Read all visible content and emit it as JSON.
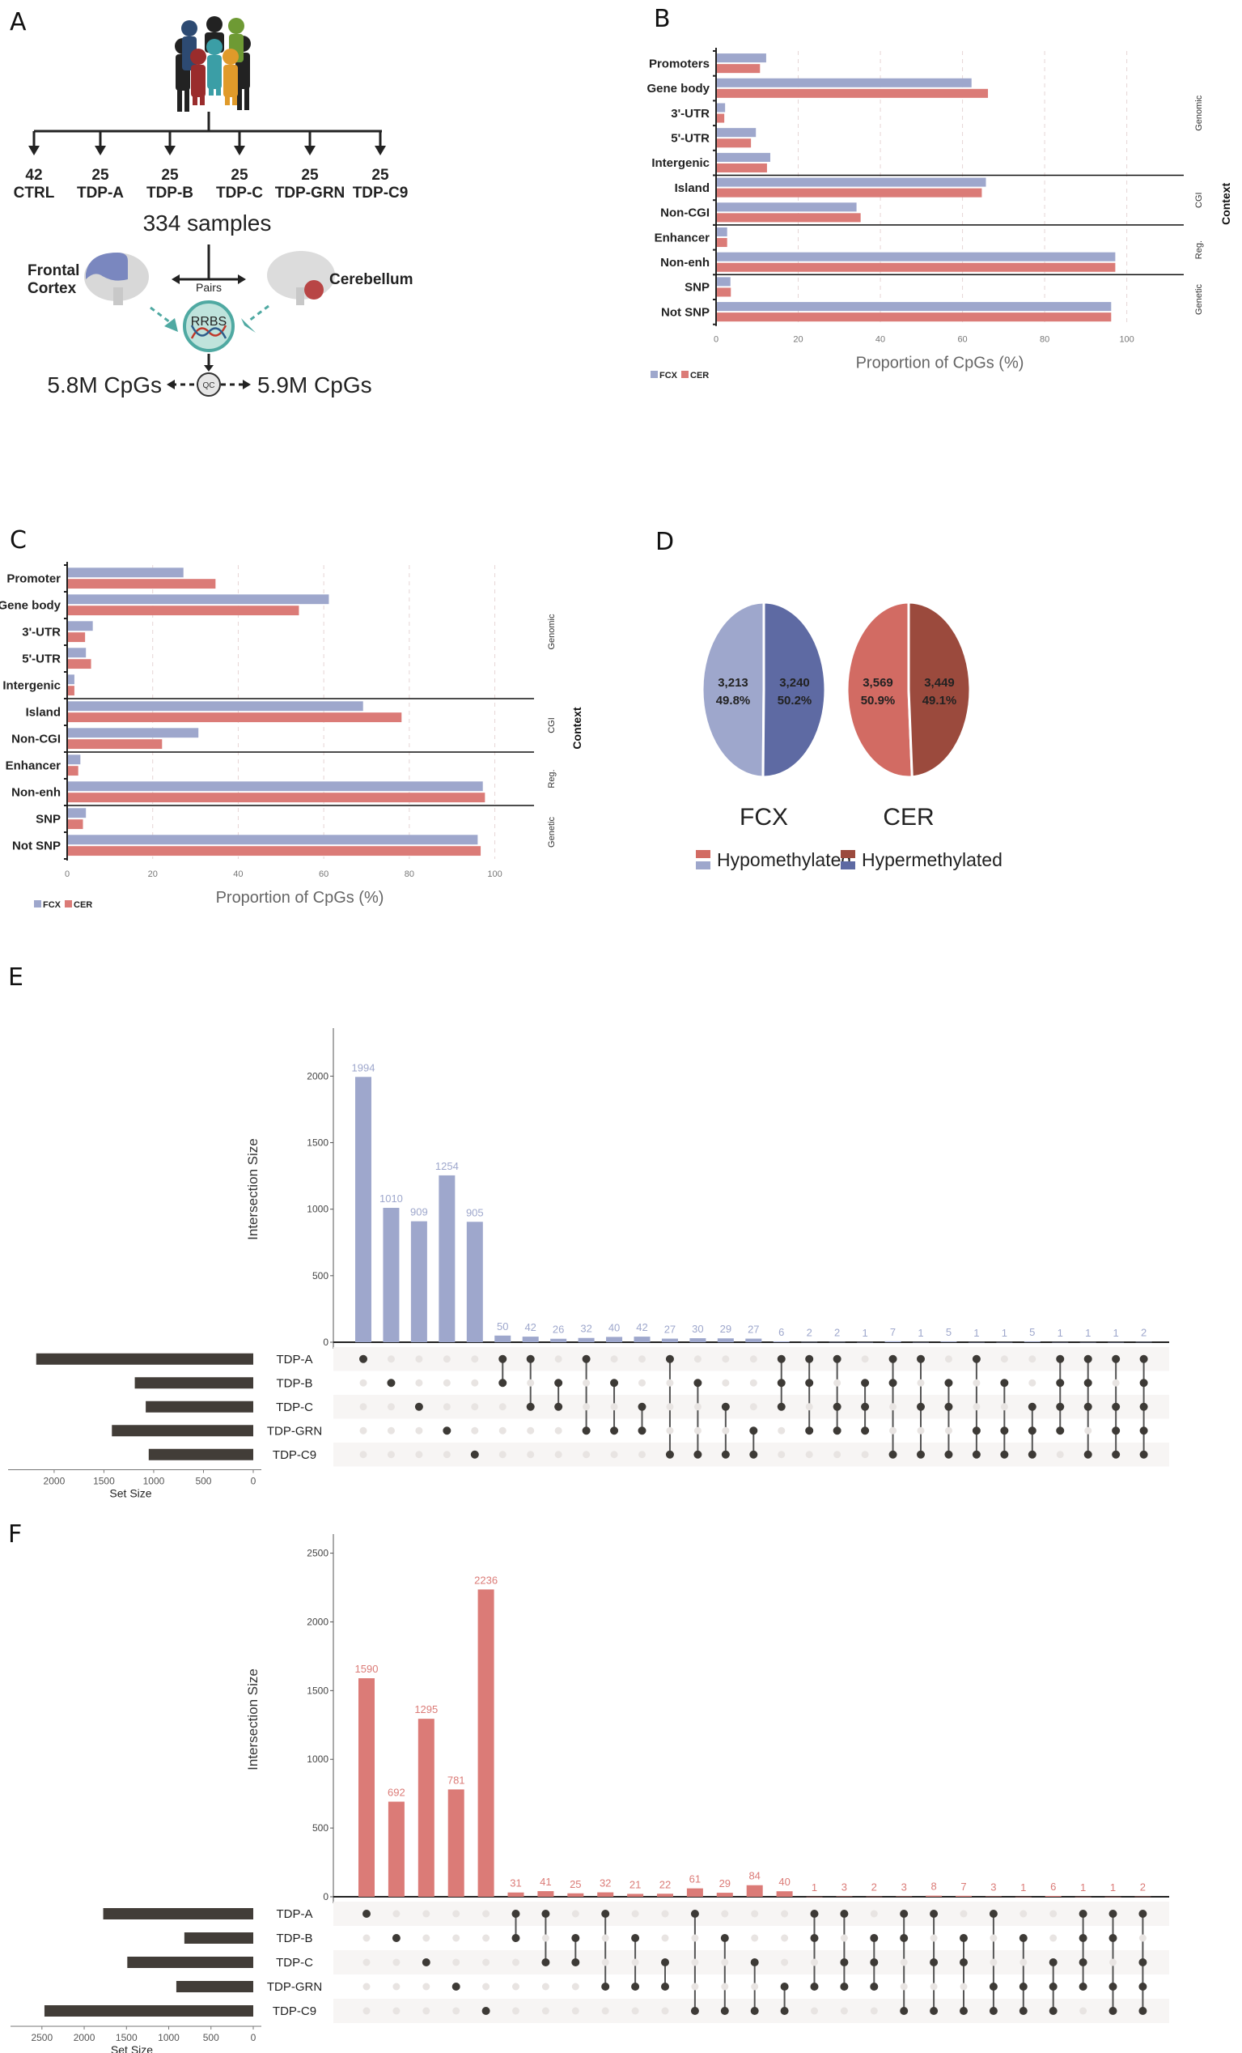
{
  "colors": {
    "fcx": "#9ea7cc",
    "cer": "#db7b77",
    "fcx_hyper": "#5e6aa3",
    "cer_hyper": "#9b4a3d",
    "matrix_dot": "#3d3a36",
    "matrix_dot_off": "#e8e4e2",
    "teal": "#4fa9a2"
  },
  "panel_a": {
    "letter": "A",
    "groups": [
      {
        "n": "42",
        "label": "CTRL"
      },
      {
        "n": "25",
        "label": "TDP-A"
      },
      {
        "n": "25",
        "label": "TDP-B"
      },
      {
        "n": "25",
        "label": "TDP-C"
      },
      {
        "n": "25",
        "label": "TDP-GRN"
      },
      {
        "n": "25",
        "label": "TDP-C9"
      }
    ],
    "total": "334 samples",
    "pairs_label": "Pairs",
    "left_tissue": [
      "Frontal",
      "Cortex"
    ],
    "right_tissue": "Cerebellum",
    "method": "RRBS",
    "qc": "QC",
    "left_cpgs": "5.8M CpGs",
    "right_cpgs": "5.9M CpGs"
  },
  "chart_data": [
    {
      "id": "B",
      "type": "bar",
      "orientation": "horizontal",
      "title": "",
      "categories": [
        "Promoters",
        "Gene body",
        "3'-UTR",
        "5'-UTR",
        "Intergenic",
        "Island",
        "Non-CGI",
        "Enhancer",
        "Non-enh",
        "SNP",
        "Not SNP"
      ],
      "groups": [
        {
          "name": "Genomic",
          "count": 5
        },
        {
          "name": "CGI",
          "count": 2
        },
        {
          "name": "Reg.",
          "count": 2
        },
        {
          "name": "Genetic",
          "count": 2
        }
      ],
      "group_axis_label": "Context",
      "series": [
        {
          "name": "FCX",
          "values": [
            12,
            62,
            2,
            9.5,
            13,
            65.5,
            34,
            2.5,
            97,
            3.3,
            96
          ]
        },
        {
          "name": "CER",
          "values": [
            10.5,
            66,
            1.8,
            8.3,
            12.2,
            64.5,
            35,
            2.5,
            97,
            3.4,
            96
          ]
        }
      ],
      "xlabel": "Proportion of CpGs (%)",
      "xlim": [
        0,
        105
      ],
      "xticks": [
        "0",
        "20",
        "40",
        "60",
        "80",
        "100"
      ],
      "grid": true,
      "legend": "bottom-left"
    },
    {
      "id": "C",
      "type": "bar",
      "orientation": "horizontal",
      "title": "",
      "categories": [
        "Promoter",
        "Gene body",
        "3'-UTR",
        "5'-UTR",
        "Intergenic",
        "Island",
        "Non-CGI",
        "Enhancer",
        "Non-enh",
        "SNP",
        "Not SNP"
      ],
      "groups": [
        {
          "name": "Genomic",
          "count": 5
        },
        {
          "name": "CGI",
          "count": 2
        },
        {
          "name": "Reg.",
          "count": 2
        },
        {
          "name": "Genetic",
          "count": 2
        }
      ],
      "group_axis_label": "Context",
      "series": [
        {
          "name": "FCX",
          "values": [
            27,
            61,
            5.8,
            4.2,
            1.5,
            69,
            30.5,
            2.9,
            97,
            4.2,
            95.8
          ]
        },
        {
          "name": "CER",
          "values": [
            34.5,
            54,
            4,
            5.4,
            1.5,
            78,
            22,
            2.4,
            97.5,
            3.5,
            96.5
          ]
        }
      ],
      "xlabel": "Proportion of CpGs (%)",
      "xlim": [
        0,
        105
      ],
      "xticks": [
        "0",
        "20",
        "40",
        "60",
        "80",
        "100"
      ],
      "grid": true,
      "legend": "bottom-left"
    },
    {
      "id": "D",
      "type": "pie",
      "pies": [
        {
          "name": "FCX",
          "slices": [
            {
              "label": "Hypomethylated",
              "count": "3,213",
              "pct": "49.8%",
              "value": 49.8
            },
            {
              "label": "Hypermethylated",
              "count": "3,240",
              "pct": "50.2%",
              "value": 50.2
            }
          ]
        },
        {
          "name": "CER",
          "slices": [
            {
              "label": "Hypomethylated",
              "count": "3,569",
              "pct": "50.9%",
              "value": 50.9
            },
            {
              "label": "Hypermethylated",
              "count": "3,449",
              "pct": "49.1%",
              "value": 49.1
            }
          ]
        }
      ],
      "legend": [
        "Hypomethylated",
        "Hypermethylated"
      ],
      "legend_position": "bottom"
    },
    {
      "id": "E",
      "type": "bar",
      "subtype": "upset",
      "sets": [
        "TDP-A",
        "TDP-B",
        "TDP-C",
        "TDP-GRN",
        "TDP-C9"
      ],
      "set_sizes": [
        2180,
        1190,
        1080,
        1420,
        1050
      ],
      "set_size_label": "Set Size",
      "set_size_ticks": [
        "2000",
        "1500",
        "1000",
        "500",
        "0"
      ],
      "set_size_max": 2300,
      "ylabel": "Intersection Size",
      "yticks": [
        "0",
        "500",
        "1000",
        "1500",
        "2000"
      ],
      "ylim": [
        0,
        2300
      ],
      "intersections": [
        {
          "sets": [
            0
          ],
          "value": 1994
        },
        {
          "sets": [
            1
          ],
          "value": 1010
        },
        {
          "sets": [
            2
          ],
          "value": 909
        },
        {
          "sets": [
            3
          ],
          "value": 1254
        },
        {
          "sets": [
            4
          ],
          "value": 905
        },
        {
          "sets": [
            0,
            1
          ],
          "value": 50
        },
        {
          "sets": [
            0,
            2
          ],
          "value": 42
        },
        {
          "sets": [
            1,
            2
          ],
          "value": 26
        },
        {
          "sets": [
            0,
            3
          ],
          "value": 32
        },
        {
          "sets": [
            1,
            3
          ],
          "value": 40
        },
        {
          "sets": [
            2,
            3
          ],
          "value": 42
        },
        {
          "sets": [
            0,
            4
          ],
          "value": 27
        },
        {
          "sets": [
            1,
            4
          ],
          "value": 30
        },
        {
          "sets": [
            2,
            4
          ],
          "value": 29
        },
        {
          "sets": [
            3,
            4
          ],
          "value": 27
        },
        {
          "sets": [
            0,
            1,
            2
          ],
          "value": 6
        },
        {
          "sets": [
            0,
            1,
            3
          ],
          "value": 2
        },
        {
          "sets": [
            0,
            2,
            3
          ],
          "value": 2
        },
        {
          "sets": [
            1,
            2,
            3
          ],
          "value": 1
        },
        {
          "sets": [
            0,
            1,
            4
          ],
          "value": 7
        },
        {
          "sets": [
            0,
            2,
            4
          ],
          "value": 1
        },
        {
          "sets": [
            1,
            2,
            4
          ],
          "value": 5
        },
        {
          "sets": [
            0,
            3,
            4
          ],
          "value": 1
        },
        {
          "sets": [
            1,
            3,
            4
          ],
          "value": 1
        },
        {
          "sets": [
            2,
            3,
            4
          ],
          "value": 5
        },
        {
          "sets": [
            0,
            1,
            2,
            3
          ],
          "value": 1
        },
        {
          "sets": [
            0,
            1,
            2,
            4
          ],
          "value": 1
        },
        {
          "sets": [
            0,
            2,
            3,
            4
          ],
          "value": 1
        },
        {
          "sets": [
            0,
            1,
            2,
            3,
            4
          ],
          "value": 2
        }
      ]
    },
    {
      "id": "F",
      "type": "bar",
      "subtype": "upset",
      "sets": [
        "TDP-A",
        "TDP-B",
        "TDP-C",
        "TDP-GRN",
        "TDP-C9"
      ],
      "set_sizes": [
        1775,
        815,
        1490,
        910,
        2470
      ],
      "set_size_label": "Set Size",
      "set_size_ticks": [
        "2500",
        "2000",
        "1500",
        "1000",
        "500",
        "0"
      ],
      "set_size_max": 2680,
      "ylabel": "Intersection Size",
      "yticks": [
        "0",
        "500",
        "1000",
        "1500",
        "2000",
        "2500"
      ],
      "ylim": [
        0,
        2580
      ],
      "intersections": [
        {
          "sets": [
            0
          ],
          "value": 1590
        },
        {
          "sets": [
            1
          ],
          "value": 692
        },
        {
          "sets": [
            2
          ],
          "value": 1295
        },
        {
          "sets": [
            3
          ],
          "value": 781
        },
        {
          "sets": [
            4
          ],
          "value": 2236
        },
        {
          "sets": [
            0,
            1
          ],
          "value": 31
        },
        {
          "sets": [
            0,
            2
          ],
          "value": 41
        },
        {
          "sets": [
            1,
            2
          ],
          "value": 25
        },
        {
          "sets": [
            0,
            3
          ],
          "value": 32
        },
        {
          "sets": [
            1,
            3
          ],
          "value": 21
        },
        {
          "sets": [
            2,
            3
          ],
          "value": 22
        },
        {
          "sets": [
            0,
            4
          ],
          "value": 61
        },
        {
          "sets": [
            1,
            4
          ],
          "value": 29
        },
        {
          "sets": [
            2,
            4
          ],
          "value": 84
        },
        {
          "sets": [
            3,
            4
          ],
          "value": 40
        },
        {
          "sets": [
            0,
            1,
            3
          ],
          "value": 1
        },
        {
          "sets": [
            0,
            2,
            3
          ],
          "value": 3
        },
        {
          "sets": [
            1,
            2,
            3
          ],
          "value": 2
        },
        {
          "sets": [
            0,
            1,
            4
          ],
          "value": 3
        },
        {
          "sets": [
            0,
            2,
            4
          ],
          "value": 8
        },
        {
          "sets": [
            1,
            2,
            4
          ],
          "value": 7
        },
        {
          "sets": [
            0,
            3,
            4
          ],
          "value": 3
        },
        {
          "sets": [
            1,
            3,
            4
          ],
          "value": 1
        },
        {
          "sets": [
            2,
            3,
            4
          ],
          "value": 6
        },
        {
          "sets": [
            0,
            1,
            2,
            3
          ],
          "value": 1
        },
        {
          "sets": [
            0,
            1,
            3,
            4
          ],
          "value": 1
        },
        {
          "sets": [
            0,
            2,
            3,
            4
          ],
          "value": 2
        }
      ]
    }
  ],
  "letters": {
    "B": "B",
    "C": "C",
    "D": "D",
    "E": "E",
    "F": "F"
  }
}
